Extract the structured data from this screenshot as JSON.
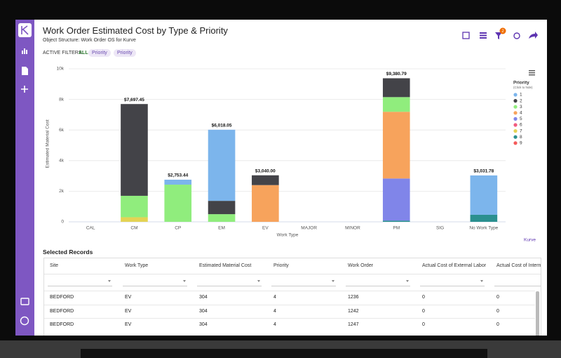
{
  "header": {
    "title": "Work Order Estimated Cost by Type & Priority",
    "subtitle": "Object Structure: Work Order OS for Kurve",
    "filters_label": "ACTIVE FILTERS:",
    "filters_all": "ALL",
    "filters": [
      "Priority",
      "Priority"
    ],
    "badge": "2"
  },
  "chart_data": {
    "type": "stacked_bar",
    "categories": [
      "CAL",
      "CM",
      "CP",
      "EM",
      "EV",
      "MAJOR",
      "MINOR",
      "PM",
      "SIG",
      "No Work Type"
    ],
    "x_label": "Work Type",
    "y_label": "Estimated Material Cost",
    "ylim": [
      0,
      10000
    ],
    "yticks": [
      0,
      {
        "value": 2000,
        "label": "2k"
      },
      {
        "value": 4000,
        "label": "4k"
      },
      {
        "value": 6000,
        "label": "6k"
      },
      {
        "value": 8000,
        "label": "8k"
      },
      {
        "value": 10000,
        "label": "10k"
      }
    ],
    "grid": true,
    "legend_title": "Priority",
    "legend_hint": "(Click to hide)",
    "legend_position": "right",
    "credit": "Kurve",
    "series": [
      {
        "name": "1",
        "color": "#7cb5ec",
        "values": [
          null,
          null,
          323.44,
          4648.05,
          null,
          null,
          null,
          null,
          null,
          2571.78
        ]
      },
      {
        "name": "2",
        "color": "#434348",
        "values": [
          null,
          5997.45,
          null,
          870,
          640,
          null,
          null,
          1230.79,
          null,
          null
        ]
      },
      {
        "name": "3",
        "color": "#90ed7d",
        "values": [
          null,
          1400,
          2430,
          500,
          null,
          null,
          null,
          960,
          null,
          null
        ]
      },
      {
        "name": "4",
        "color": "#f7a35c",
        "values": [
          null,
          null,
          null,
          null,
          2400,
          null,
          null,
          4360,
          null,
          null
        ]
      },
      {
        "name": "5",
        "color": "#8085e9",
        "values": [
          null,
          null,
          null,
          null,
          null,
          null,
          null,
          2750,
          null,
          null
        ]
      },
      {
        "name": "6",
        "color": "#f15c80",
        "values": [
          null,
          null,
          null,
          null,
          null,
          null,
          null,
          null,
          null,
          null
        ]
      },
      {
        "name": "7",
        "color": "#e4d354",
        "values": [
          null,
          300,
          null,
          null,
          null,
          null,
          null,
          null,
          null,
          null
        ]
      },
      {
        "name": "8",
        "color": "#2b908f",
        "values": [
          null,
          null,
          null,
          null,
          null,
          null,
          null,
          80,
          null,
          460
        ]
      },
      {
        "name": "9",
        "color": "#f45b5b",
        "values": [
          null,
          null,
          null,
          null,
          null,
          null,
          null,
          null,
          null,
          null
        ]
      }
    ],
    "totals": [
      null,
      7697.45,
      2753.44,
      6018.05,
      3040,
      null,
      null,
      9380.79,
      null,
      3031.78
    ],
    "total_labels": [
      null,
      "$7,697.45",
      "$2,753.44",
      "$6,018.05",
      "$3,040.00",
      null,
      null,
      "$9,380.79",
      null,
      "$3,031.78"
    ]
  },
  "table": {
    "title": "Selected Records",
    "columns": [
      "Site",
      "Work Type",
      "Estimated Material Cost",
      "Priority",
      "Work Order",
      "Actual Cost of External Labor",
      "Actual Cost of Interna"
    ],
    "rows": [
      [
        "BEDFORD",
        "EV",
        "304",
        "4",
        "1236",
        "0",
        "0"
      ],
      [
        "BEDFORD",
        "EV",
        "304",
        "4",
        "1242",
        "0",
        "0"
      ],
      [
        "BEDFORD",
        "EV",
        "304",
        "4",
        "1247",
        "0",
        "0"
      ]
    ]
  }
}
